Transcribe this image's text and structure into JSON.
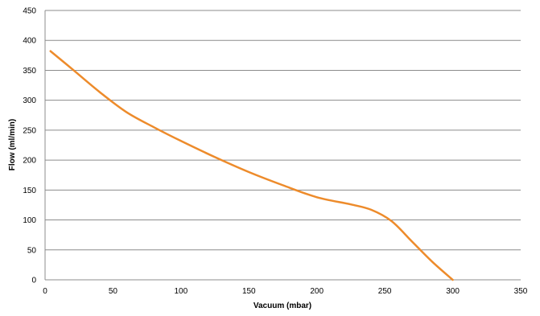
{
  "chart_data": {
    "type": "line",
    "title": "",
    "xlabel": "Vacuum (mbar)",
    "ylabel": "Flow (ml/min)",
    "xlim": [
      0,
      350
    ],
    "ylim": [
      0,
      450
    ],
    "x_ticks": [
      0,
      50,
      100,
      150,
      200,
      250,
      300,
      350
    ],
    "y_ticks": [
      0,
      50,
      100,
      150,
      200,
      250,
      300,
      350,
      400,
      450
    ],
    "grid": "horizontal",
    "legend": "none",
    "series": [
      {
        "color": "#ED8B2B",
        "x": [
          4,
          20,
          40,
          60,
          80,
          100,
          125,
          150,
          175,
          200,
          225,
          240,
          255,
          270,
          285,
          300
        ],
        "y": [
          382,
          352,
          314,
          280,
          255,
          232,
          205,
          180,
          158,
          138,
          126,
          117,
          98,
          64,
          30,
          0
        ]
      }
    ]
  }
}
